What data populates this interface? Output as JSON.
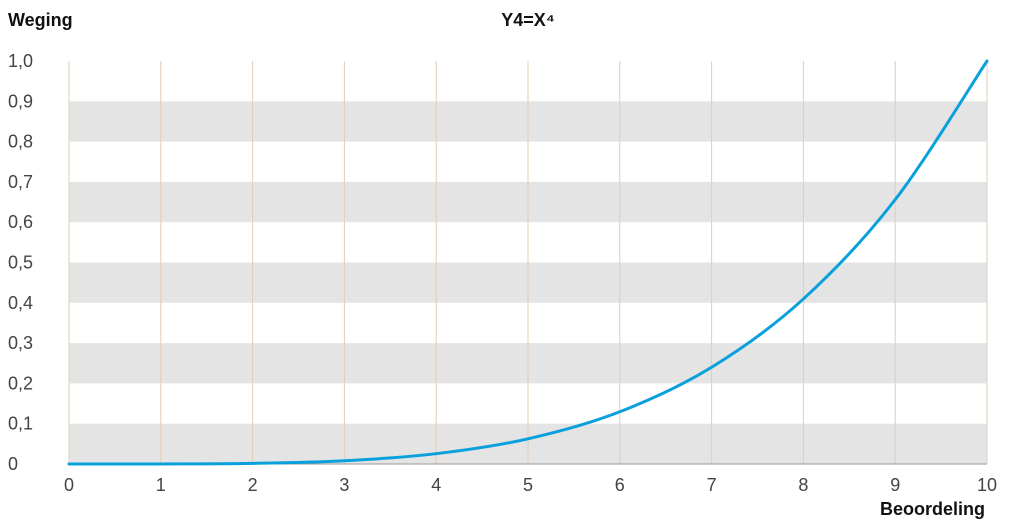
{
  "chart_data": {
    "type": "line",
    "title": "Y4=X⁴",
    "ylabel": "Weging",
    "xlabel": "Beoordeling",
    "xlim": [
      0,
      10
    ],
    "ylim": [
      0,
      1
    ],
    "x_ticks": [
      "0",
      "1",
      "2",
      "3",
      "4",
      "5",
      "6",
      "7",
      "8",
      "9",
      "10"
    ],
    "y_ticks": [
      "0",
      "0,1",
      "0,2",
      "0,3",
      "0,4",
      "0,5",
      "0,6",
      "0,7",
      "0,8",
      "0,9",
      "1,0"
    ],
    "grid": true,
    "series": [
      {
        "x": [
          0,
          1,
          2,
          3,
          4,
          5,
          6,
          7,
          8,
          9,
          10
        ],
        "y": [
          0,
          0.0001,
          0.0016,
          0.0081,
          0.0256,
          0.0625,
          0.1296,
          0.2401,
          0.4096,
          0.6561,
          1.0
        ]
      }
    ],
    "colors": {
      "line": "#0aa0dc",
      "band": "#e4e4e4",
      "vertical_grid": "#e2cdb6",
      "axis": "#9a9a9a"
    }
  }
}
